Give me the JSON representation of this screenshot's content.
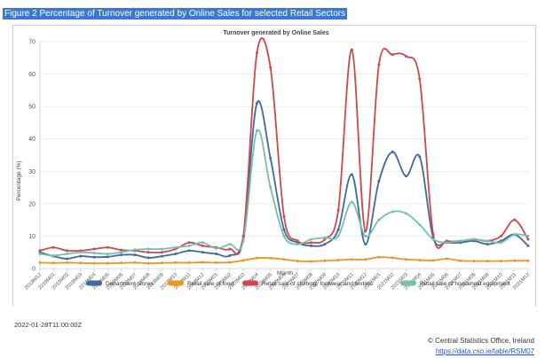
{
  "figure_title": "Figure 2 Percentage of Turnover generated by Online Sales for selected Retail Sectors",
  "timestamp": "2022-01-28T11:00:00Z",
  "copyright": "© Central Statistics Office, Ireland",
  "source_url": "https://data.cso.ie/table/RSM07",
  "chart_data": {
    "type": "line",
    "title": "Turnover generated by Online Sales",
    "xlabel": "Month",
    "ylabel": "Percentage (%)",
    "ylim": [
      0,
      70
    ],
    "yticks": [
      0,
      10,
      20,
      30,
      40,
      50,
      60,
      70
    ],
    "grid": true,
    "legend_position": "bottom",
    "categories": [
      "2018M12",
      "2019M01",
      "2019M02",
      "2019M03",
      "2019M04",
      "2019M05",
      "2019M06",
      "2019M07",
      "2019M08",
      "2019M09",
      "2019M10",
      "2019M11",
      "2019M12",
      "2020M01",
      "2020M02",
      "2020M03",
      "2020M04",
      "2020M05",
      "2020M06",
      "2020M07",
      "2020M08",
      "2020M09",
      "2020M10",
      "2020M11",
      "2020M12",
      "2021M01",
      "2021M02",
      "2021M03",
      "2021M04",
      "2021M05",
      "2021M06",
      "2021M07",
      "2021M08",
      "2021M09",
      "2021M10",
      "2021M11",
      "2021M12"
    ],
    "series": [
      {
        "name": "Department stores",
        "color": "#3f6b9c",
        "values": [
          5,
          3.8,
          3,
          3.8,
          3.5,
          3.6,
          4.2,
          4.2,
          3.3,
          3.8,
          4.5,
          5.5,
          5,
          4.5,
          4,
          10,
          51,
          34,
          12,
          8,
          7,
          7.5,
          12,
          29,
          7.5,
          27,
          36,
          28.5,
          34.5,
          9.5,
          8,
          8,
          8.5,
          7.5,
          8.5,
          10.5,
          7
        ]
      },
      {
        "name": "Retail sale of food",
        "color": "#f0951f",
        "values": [
          1.8,
          1.7,
          1.8,
          1.7,
          1.6,
          1.6,
          1.7,
          1.8,
          1.6,
          1.7,
          1.8,
          1.8,
          1.9,
          1.8,
          1.9,
          2.5,
          3.2,
          3.2,
          2.8,
          2.3,
          2.2,
          2.4,
          2.6,
          2.8,
          2.8,
          3.5,
          3.3,
          2.8,
          2.6,
          2.5,
          3,
          2.4,
          2.3,
          2.3,
          2.3,
          2.4,
          2.4
        ]
      },
      {
        "name": "Retail sale of clothing, footwear and textiles",
        "color": "#d0474b",
        "values": [
          5.5,
          6.5,
          5.5,
          5.5,
          6,
          6.5,
          5.7,
          5.5,
          5,
          5,
          6,
          8,
          7,
          6.5,
          6,
          10,
          66.5,
          62,
          16,
          8.5,
          8,
          9,
          18,
          67.5,
          11.5,
          63,
          66,
          65.5,
          58.5,
          10.5,
          8.5,
          8.5,
          9,
          8.5,
          10,
          15,
          9
        ]
      },
      {
        "name": "Retail sale of household equipment",
        "color": "#76bfb0",
        "values": [
          4.5,
          4,
          4.5,
          5,
          4.8,
          4.5,
          5,
          5.8,
          6,
          6,
          6.5,
          7,
          8,
          6.2,
          7.5,
          8.5,
          42.5,
          25,
          10,
          7.5,
          9,
          9.5,
          10,
          20.5,
          10,
          15,
          17.5,
          17,
          13.5,
          9,
          8,
          8.5,
          9,
          8.5,
          8,
          10.5,
          10
        ]
      }
    ]
  }
}
